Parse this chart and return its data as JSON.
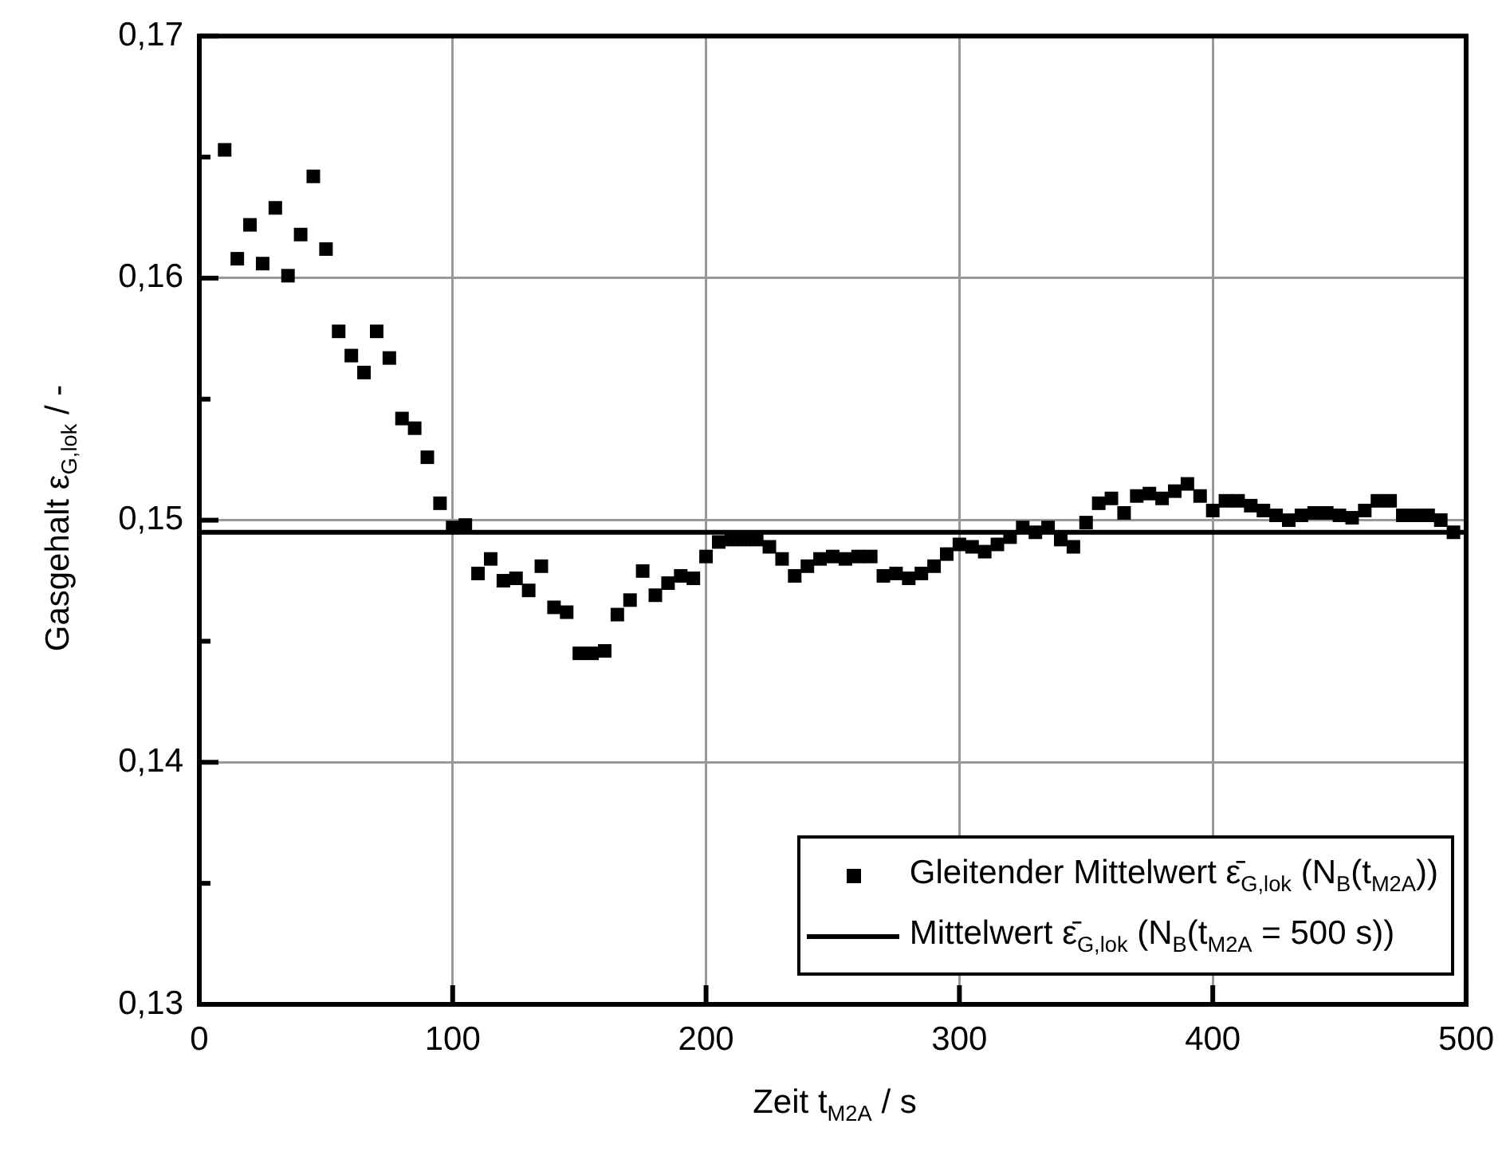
{
  "chart_data": {
    "type": "scatter",
    "xlabel": "Zeit t$_{M2A}$  /  s",
    "ylabel": "Gasgehalt ε$_{G,lok}$  /  -",
    "xlim": [
      0,
      500
    ],
    "xticks": [
      0,
      100,
      200,
      300,
      400,
      500
    ],
    "ylim": [
      0.13,
      0.17
    ],
    "yticks": [
      {
        "value": 0.13,
        "label": "0,13"
      },
      {
        "value": 0.135,
        "label": null
      },
      {
        "value": 0.14,
        "label": "0,14"
      },
      {
        "value": 0.145,
        "label": null
      },
      {
        "value": 0.15,
        "label": "0,15"
      },
      {
        "value": 0.155,
        "label": null
      },
      {
        "value": 0.16,
        "label": "0,16"
      },
      {
        "value": 0.165,
        "label": null
      },
      {
        "value": 0.17,
        "label": "0,17"
      }
    ],
    "grid": true,
    "legend": "bottom right",
    "marker": "square",
    "series": [
      {
        "name": "Gleitender Mittelwert ε̄$_{G,lok}$ (N$_{B}$(t$_{M2A}$))",
        "color": "#000000",
        "x": [
          10,
          15,
          20,
          25,
          30,
          35,
          40,
          45,
          50,
          55,
          60,
          65,
          70,
          75,
          80,
          85,
          90,
          95,
          100,
          105,
          110,
          115,
          120,
          125,
          130,
          135,
          140,
          145,
          150,
          155,
          160,
          165,
          170,
          175,
          180,
          185,
          190,
          195,
          200,
          205,
          210,
          215,
          220,
          225,
          230,
          235,
          240,
          245,
          250,
          255,
          260,
          265,
          270,
          275,
          280,
          285,
          290,
          295,
          300,
          305,
          310,
          315,
          320,
          325,
          330,
          335,
          340,
          345,
          350,
          355,
          360,
          365,
          370,
          375,
          380,
          385,
          390,
          395,
          400,
          405,
          410,
          415,
          420,
          425,
          430,
          435,
          440,
          445,
          450,
          455,
          460,
          465,
          470,
          475,
          480,
          485,
          490,
          495
        ],
        "values": [
          0.1653,
          0.1608,
          0.1622,
          0.1606,
          0.1629,
          0.1601,
          0.1618,
          0.1642,
          0.1612,
          0.1578,
          0.1568,
          0.1561,
          0.1578,
          0.1567,
          0.1542,
          0.1538,
          0.1526,
          0.1507,
          0.1497,
          0.1498,
          0.1478,
          0.1484,
          0.1475,
          0.1476,
          0.1471,
          0.1481,
          0.1464,
          0.1462,
          0.1445,
          0.1445,
          0.1446,
          0.1461,
          0.1467,
          0.1479,
          0.1469,
          0.1474,
          0.1477,
          0.1476,
          0.1485,
          0.1491,
          0.1492,
          0.1492,
          0.1492,
          0.1489,
          0.1484,
          0.1477,
          0.1481,
          0.1484,
          0.1485,
          0.1484,
          0.1485,
          0.1485,
          0.1477,
          0.1478,
          0.1476,
          0.1478,
          0.1481,
          0.1486,
          0.149,
          0.1489,
          0.1487,
          0.149,
          0.1493,
          0.1497,
          0.1495,
          0.1497,
          0.1492,
          0.1489,
          0.1499,
          0.1507,
          0.1509,
          0.1503,
          0.151,
          0.1511,
          0.1509,
          0.1512,
          0.1515,
          0.151,
          0.1504,
          0.1508,
          0.1508,
          0.1506,
          0.1504,
          0.1502,
          0.15,
          0.1502,
          0.1503,
          0.1503,
          0.1502,
          0.1501,
          0.1504,
          0.1508,
          0.1508,
          0.1502,
          0.1502,
          0.1502,
          0.15,
          0.1495
        ]
      },
      {
        "name": "Mittelwert  ε̄$_{G,lok}$ (N$_{B}$(t$_{M2A}$ = 500 s))",
        "type": "line",
        "color": "#000000",
        "marker": "none",
        "line_style": "solid",
        "x": [
          0,
          500
        ],
        "values": [
          0.1495,
          0.1495
        ]
      }
    ]
  }
}
